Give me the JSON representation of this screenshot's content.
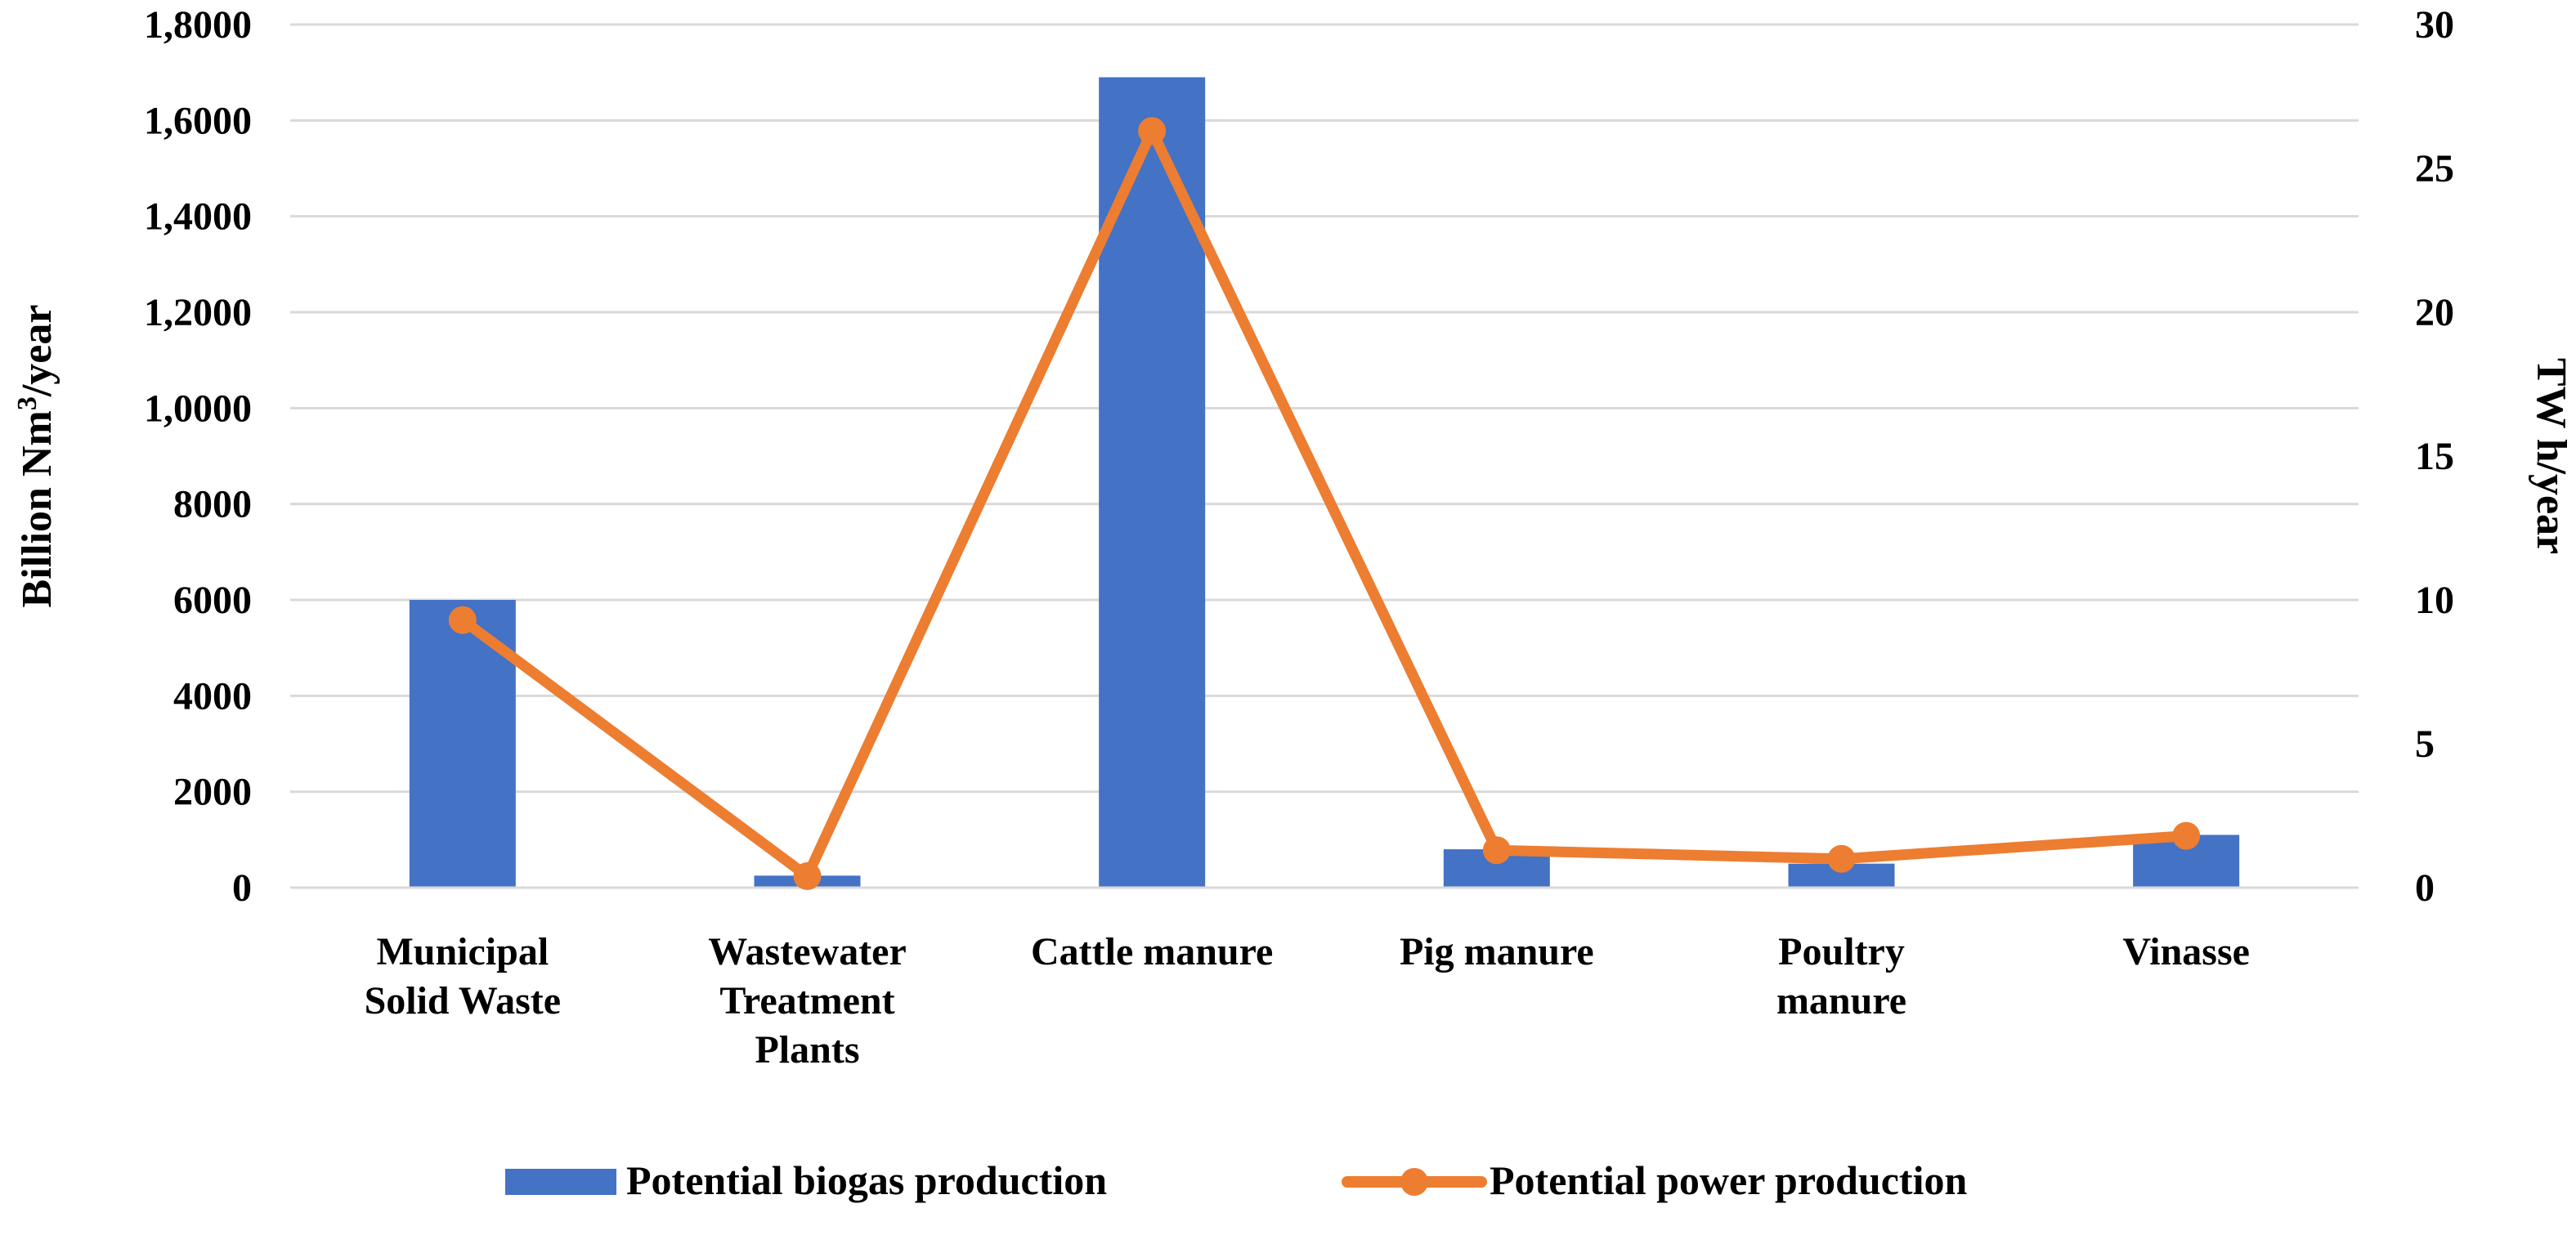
{
  "chart_data": {
    "type": "bar",
    "categories": [
      [
        "Municipal",
        "Solid Waste"
      ],
      [
        "Wastewater",
        "Treatment",
        "Plants"
      ],
      [
        "Cattle manure"
      ],
      [
        "Pig manure"
      ],
      [
        "Poultry",
        "manure"
      ],
      [
        "Vinasse"
      ]
    ],
    "series": [
      {
        "name": "Potential biogas production",
        "type": "bar",
        "axis": "left",
        "color": "#4472C4",
        "values": [
          6000,
          250,
          16900,
          800,
          500,
          1100
        ]
      },
      {
        "name": "Potential power production",
        "type": "line",
        "axis": "right",
        "color": "#ED7D31",
        "values": [
          9.3,
          0.4,
          26.3,
          1.3,
          1.0,
          1.8
        ]
      }
    ],
    "y_left": {
      "label_main": "Billion Nm",
      "label_sup": "3",
      "label_tail": "/year",
      "ylim": [
        0,
        18000
      ],
      "tick_values": [
        0,
        2000,
        4000,
        6000,
        8000,
        10000,
        12000,
        14000,
        16000,
        18000
      ],
      "tick_labels": [
        "0",
        "2000",
        "4000",
        "6000",
        "8000",
        "1,0000",
        "1,2000",
        "1,4000",
        "1,6000",
        "1,8000"
      ]
    },
    "y_right": {
      "label": "TW h/year",
      "ylim": [
        0,
        30
      ],
      "tick_values": [
        0,
        5,
        10,
        15,
        20,
        25,
        30
      ],
      "tick_labels": [
        "0",
        "5",
        "10",
        "15",
        "20",
        "25",
        "30"
      ]
    },
    "grid": true,
    "legend_position": "bottom"
  }
}
